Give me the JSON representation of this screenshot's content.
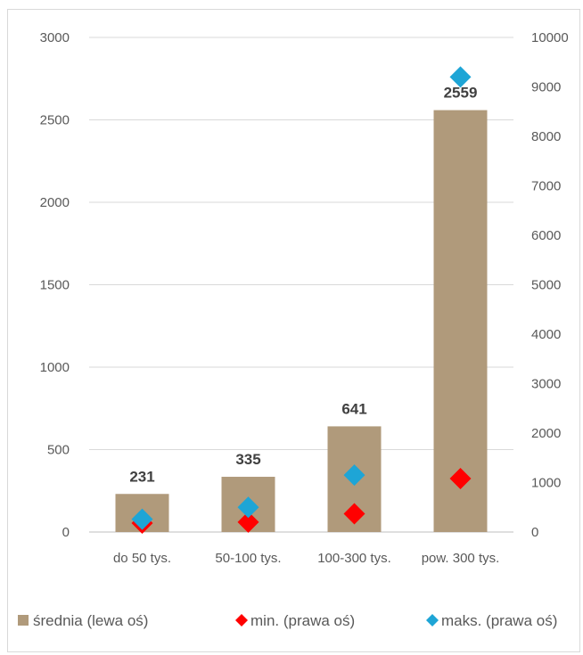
{
  "chart_data": {
    "type": "bar",
    "categories": [
      "do 50 tys.",
      "50-100 tys.",
      "100-300 tys.",
      "pow. 300 tys."
    ],
    "series": [
      {
        "name": "średnia (lewa oś)",
        "kind": "bar",
        "axis": "left",
        "values": [
          231,
          335,
          641,
          2559
        ],
        "color": "#b09a7b"
      },
      {
        "name": "min. (prawa oś)",
        "kind": "marker",
        "marker": "diamond",
        "axis": "right",
        "values": [
          180,
          200,
          370,
          1080
        ],
        "color": "#ff0000"
      },
      {
        "name": "maks. (prawa oś)",
        "kind": "marker",
        "marker": "diamond",
        "axis": "right",
        "values": [
          260,
          500,
          1150,
          9200
        ],
        "color": "#1ea5d6"
      }
    ],
    "data_labels": [
      "231",
      "335",
      "641",
      "2559"
    ],
    "left_axis": {
      "min": 0,
      "max": 3000,
      "ticks": [
        "0",
        "500",
        "1000",
        "1500",
        "2000",
        "2500",
        "3000"
      ]
    },
    "right_axis": {
      "min": 0,
      "max": 10000,
      "ticks": [
        "0",
        "1000",
        "2000",
        "3000",
        "4000",
        "5000",
        "6000",
        "7000",
        "8000",
        "9000",
        "10000"
      ]
    },
    "grid": true,
    "legend_position": "bottom",
    "gridline_color": "#d9d9d9",
    "axis_line_color": "#bfbfbf"
  }
}
